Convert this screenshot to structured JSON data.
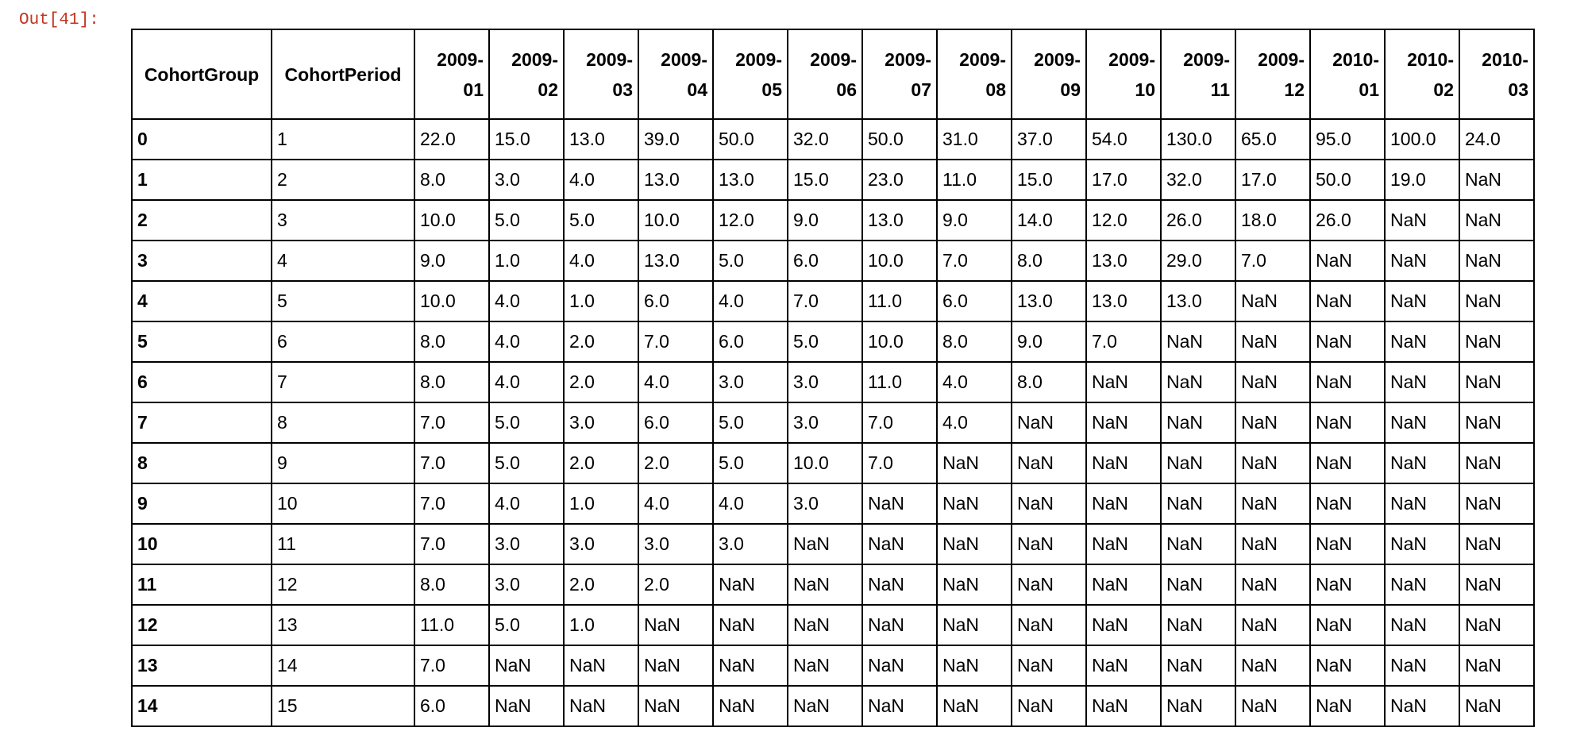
{
  "prompt": "Out[41]:",
  "table": {
    "index_header": "CohortGroup",
    "columns": [
      "CohortPeriod",
      "2009-\n01",
      "2009-\n02",
      "2009-\n03",
      "2009-\n04",
      "2009-\n05",
      "2009-\n06",
      "2009-\n07",
      "2009-\n08",
      "2009-\n09",
      "2009-\n10",
      "2009-\n11",
      "2009-\n12",
      "2010-\n01",
      "2010-\n02",
      "2010-\n03"
    ],
    "rows": [
      {
        "index": "0",
        "cells": [
          "1",
          "22.0",
          "15.0",
          "13.0",
          "39.0",
          "50.0",
          "32.0",
          "50.0",
          "31.0",
          "37.0",
          "54.0",
          "130.0",
          "65.0",
          "95.0",
          "100.0",
          "24.0"
        ]
      },
      {
        "index": "1",
        "cells": [
          "2",
          "8.0",
          "3.0",
          "4.0",
          "13.0",
          "13.0",
          "15.0",
          "23.0",
          "11.0",
          "15.0",
          "17.0",
          "32.0",
          "17.0",
          "50.0",
          "19.0",
          "NaN"
        ]
      },
      {
        "index": "2",
        "cells": [
          "3",
          "10.0",
          "5.0",
          "5.0",
          "10.0",
          "12.0",
          "9.0",
          "13.0",
          "9.0",
          "14.0",
          "12.0",
          "26.0",
          "18.0",
          "26.0",
          "NaN",
          "NaN"
        ]
      },
      {
        "index": "3",
        "cells": [
          "4",
          "9.0",
          "1.0",
          "4.0",
          "13.0",
          "5.0",
          "6.0",
          "10.0",
          "7.0",
          "8.0",
          "13.0",
          "29.0",
          "7.0",
          "NaN",
          "NaN",
          "NaN"
        ]
      },
      {
        "index": "4",
        "cells": [
          "5",
          "10.0",
          "4.0",
          "1.0",
          "6.0",
          "4.0",
          "7.0",
          "11.0",
          "6.0",
          "13.0",
          "13.0",
          "13.0",
          "NaN",
          "NaN",
          "NaN",
          "NaN"
        ]
      },
      {
        "index": "5",
        "cells": [
          "6",
          "8.0",
          "4.0",
          "2.0",
          "7.0",
          "6.0",
          "5.0",
          "10.0",
          "8.0",
          "9.0",
          "7.0",
          "NaN",
          "NaN",
          "NaN",
          "NaN",
          "NaN"
        ]
      },
      {
        "index": "6",
        "cells": [
          "7",
          "8.0",
          "4.0",
          "2.0",
          "4.0",
          "3.0",
          "3.0",
          "11.0",
          "4.0",
          "8.0",
          "NaN",
          "NaN",
          "NaN",
          "NaN",
          "NaN",
          "NaN"
        ]
      },
      {
        "index": "7",
        "cells": [
          "8",
          "7.0",
          "5.0",
          "3.0",
          "6.0",
          "5.0",
          "3.0",
          "7.0",
          "4.0",
          "NaN",
          "NaN",
          "NaN",
          "NaN",
          "NaN",
          "NaN",
          "NaN"
        ]
      },
      {
        "index": "8",
        "cells": [
          "9",
          "7.0",
          "5.0",
          "2.0",
          "2.0",
          "5.0",
          "10.0",
          "7.0",
          "NaN",
          "NaN",
          "NaN",
          "NaN",
          "NaN",
          "NaN",
          "NaN",
          "NaN"
        ]
      },
      {
        "index": "9",
        "cells": [
          "10",
          "7.0",
          "4.0",
          "1.0",
          "4.0",
          "4.0",
          "3.0",
          "NaN",
          "NaN",
          "NaN",
          "NaN",
          "NaN",
          "NaN",
          "NaN",
          "NaN",
          "NaN"
        ]
      },
      {
        "index": "10",
        "cells": [
          "11",
          "7.0",
          "3.0",
          "3.0",
          "3.0",
          "3.0",
          "NaN",
          "NaN",
          "NaN",
          "NaN",
          "NaN",
          "NaN",
          "NaN",
          "NaN",
          "NaN",
          "NaN"
        ]
      },
      {
        "index": "11",
        "cells": [
          "12",
          "8.0",
          "3.0",
          "2.0",
          "2.0",
          "NaN",
          "NaN",
          "NaN",
          "NaN",
          "NaN",
          "NaN",
          "NaN",
          "NaN",
          "NaN",
          "NaN",
          "NaN"
        ]
      },
      {
        "index": "12",
        "cells": [
          "13",
          "11.0",
          "5.0",
          "1.0",
          "NaN",
          "NaN",
          "NaN",
          "NaN",
          "NaN",
          "NaN",
          "NaN",
          "NaN",
          "NaN",
          "NaN",
          "NaN",
          "NaN"
        ]
      },
      {
        "index": "13",
        "cells": [
          "14",
          "7.0",
          "NaN",
          "NaN",
          "NaN",
          "NaN",
          "NaN",
          "NaN",
          "NaN",
          "NaN",
          "NaN",
          "NaN",
          "NaN",
          "NaN",
          "NaN",
          "NaN"
        ]
      },
      {
        "index": "14",
        "cells": [
          "15",
          "6.0",
          "NaN",
          "NaN",
          "NaN",
          "NaN",
          "NaN",
          "NaN",
          "NaN",
          "NaN",
          "NaN",
          "NaN",
          "NaN",
          "NaN",
          "NaN",
          "NaN"
        ]
      }
    ]
  }
}
